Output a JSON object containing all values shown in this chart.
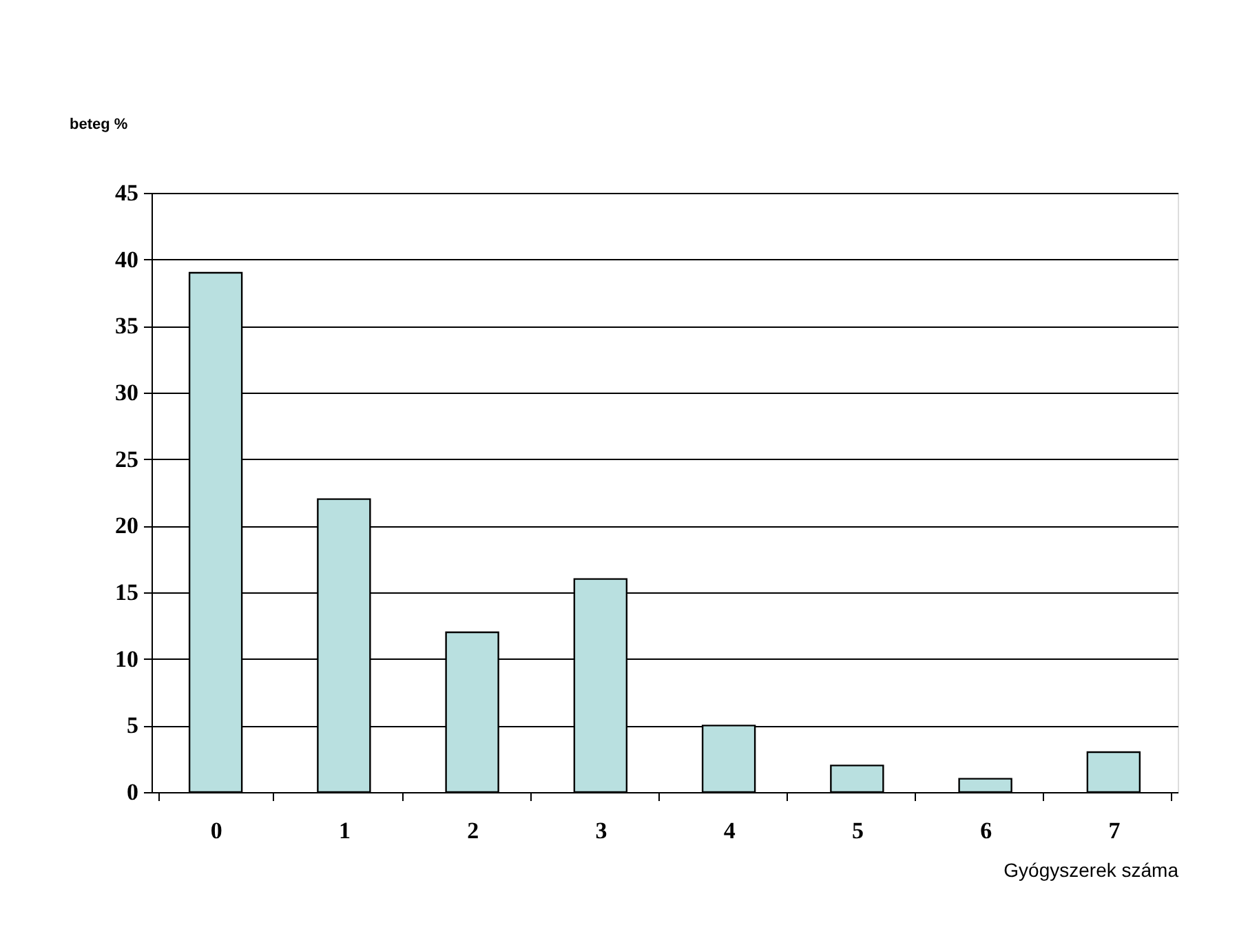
{
  "chart_data": {
    "type": "bar",
    "xlabel": "Gyógyszerek száma",
    "ylabel": "beteg %",
    "categories": [
      "0",
      "1",
      "2",
      "3",
      "4",
      "5",
      "6",
      "7"
    ],
    "values": [
      39,
      22,
      12,
      16,
      5,
      2,
      1,
      3
    ],
    "color": "#b9e0e0",
    "ylim": [
      0,
      45
    ],
    "yticks": [
      0,
      5,
      10,
      15,
      20,
      25,
      30,
      35,
      40,
      45
    ],
    "grid": "y"
  }
}
